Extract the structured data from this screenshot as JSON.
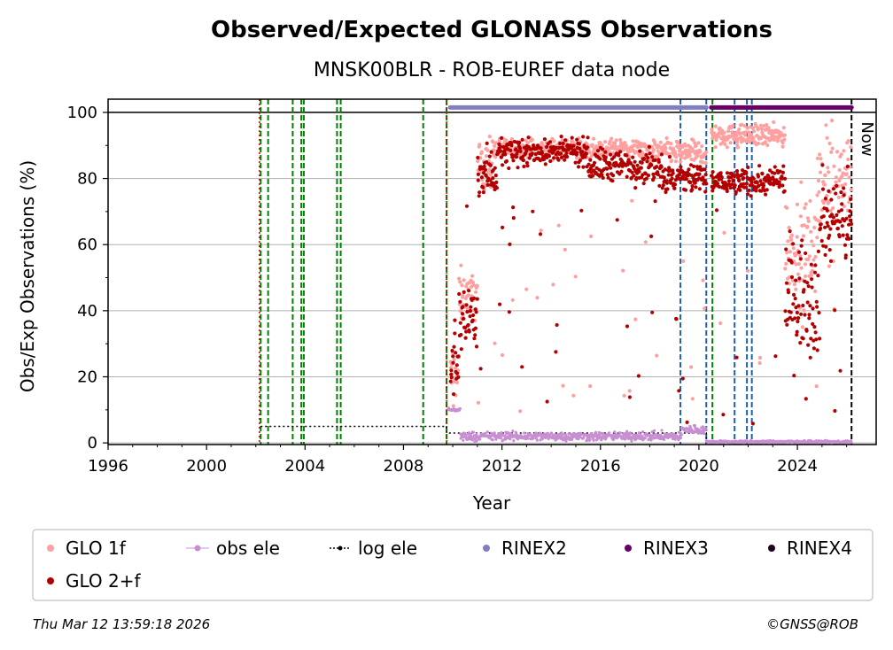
{
  "chart_data": {
    "type": "scatter",
    "title": "Observed/Expected GLONASS Observations",
    "subtitle": "MNSK00BLR - ROB-EUREF data node",
    "xlabel": "Year",
    "ylabel": "Obs/Exp Observations (%)",
    "xlim": [
      1996,
      2027.2
    ],
    "ylim": [
      -0.5,
      104
    ],
    "xticks": [
      1996,
      2000,
      2004,
      2008,
      2012,
      2016,
      2020,
      2024
    ],
    "yticks": [
      0,
      20,
      40,
      60,
      80,
      100
    ],
    "grid": "horizontal",
    "now_label": "Now",
    "now_x": 2026.2,
    "legend": {
      "placement": "bottom",
      "entries": [
        {
          "label": "GLO 1f",
          "color": "#ff9f9f"
        },
        {
          "label": "obs ele",
          "color": "#c78fd1"
        },
        {
          "label": "log ele",
          "color": "#000000"
        },
        {
          "label": "RINEX2",
          "color": "#8080c0"
        },
        {
          "label": "RINEX3",
          "color": "#660066"
        },
        {
          "label": "RINEX4",
          "color": "#220022"
        },
        {
          "label": "GLO 2+f",
          "color": "#b30000"
        }
      ]
    },
    "vlines_green": [
      2002.2,
      2002.5,
      2003.5,
      2003.85,
      2003.95,
      2005.3,
      2005.45,
      2008.8,
      2009.75,
      2020.55
    ],
    "vlines_red": [
      2002.15,
      2009.75
    ],
    "vlines_blue": [
      2019.25,
      2020.3,
      2021.45,
      2021.95,
      2022.15
    ],
    "rinex2_range": [
      2009.9,
      2020.3
    ],
    "rinex3_range": [
      2020.5,
      2026.2
    ],
    "log_ele": [
      {
        "x": 2002.2,
        "y": 5
      },
      {
        "x": 2009.75,
        "y": 5
      },
      {
        "x": 2009.75,
        "y": 3
      },
      {
        "x": 2020.3,
        "y": 3
      },
      {
        "x": 2020.3,
        "y": 0
      },
      {
        "x": 2026.2,
        "y": 0
      }
    ],
    "series": [
      {
        "name": "GLO 1f",
        "color": "#ff9f9f",
        "segments": [
          {
            "x": [
              2009.9,
              2010.25
            ],
            "mean": 20,
            "spread": 8
          },
          {
            "x": [
              2010.25,
              2011.0
            ],
            "mean": 45,
            "spread": 6
          },
          {
            "x": [
              2011.0,
              2011.6
            ],
            "mean": 84,
            "spread": 5
          },
          {
            "x": [
              2011.6,
              2017.8
            ],
            "mean": 89,
            "spread": 2
          },
          {
            "x": [
              2017.8,
              2020.3
            ],
            "mean": 88,
            "spread": 3
          },
          {
            "x": [
              2020.5,
              2023.5
            ],
            "mean": 93,
            "spread": 2.5
          },
          {
            "x": [
              2023.5,
              2024.8
            ],
            "mean": 60,
            "spread": 12
          },
          {
            "x": [
              2024.8,
              2026.2
            ],
            "mean": 80,
            "spread": 10
          }
        ]
      },
      {
        "name": "GLO 2+f",
        "color": "#b30000",
        "segments": [
          {
            "x": [
              2009.9,
              2010.25
            ],
            "mean": 22,
            "spread": 8
          },
          {
            "x": [
              2010.25,
              2011.0
            ],
            "mean": 38,
            "spread": 7
          },
          {
            "x": [
              2011.0,
              2011.8
            ],
            "mean": 82,
            "spread": 6
          },
          {
            "x": [
              2011.8,
              2015.5
            ],
            "mean": 88,
            "spread": 3
          },
          {
            "x": [
              2015.5,
              2018.5
            ],
            "mean": 84,
            "spread": 4
          },
          {
            "x": [
              2018.5,
              2020.3
            ],
            "mean": 80,
            "spread": 4
          },
          {
            "x": [
              2020.5,
              2023.5
            ],
            "mean": 79,
            "spread": 3
          },
          {
            "x": [
              2023.5,
              2024.9
            ],
            "mean": 45,
            "spread": 14
          },
          {
            "x": [
              2024.9,
              2026.2
            ],
            "mean": 68,
            "spread": 10
          }
        ]
      },
      {
        "name": "obs ele",
        "color": "#c78fd1",
        "segments": [
          {
            "x": [
              2009.8,
              2010.3
            ],
            "mean": 10,
            "spread": 0.5
          },
          {
            "x": [
              2010.3,
              2019.3
            ],
            "mean": 2,
            "spread": 1
          },
          {
            "x": [
              2019.3,
              2020.3
            ],
            "mean": 4,
            "spread": 1
          },
          {
            "x": [
              2020.3,
              2026.2
            ],
            "mean": 0.3,
            "spread": 0.3
          }
        ]
      }
    ]
  },
  "footer": {
    "timestamp": "Thu Mar 12 13:59:18 2026",
    "credit": "©GNSS@ROB"
  }
}
